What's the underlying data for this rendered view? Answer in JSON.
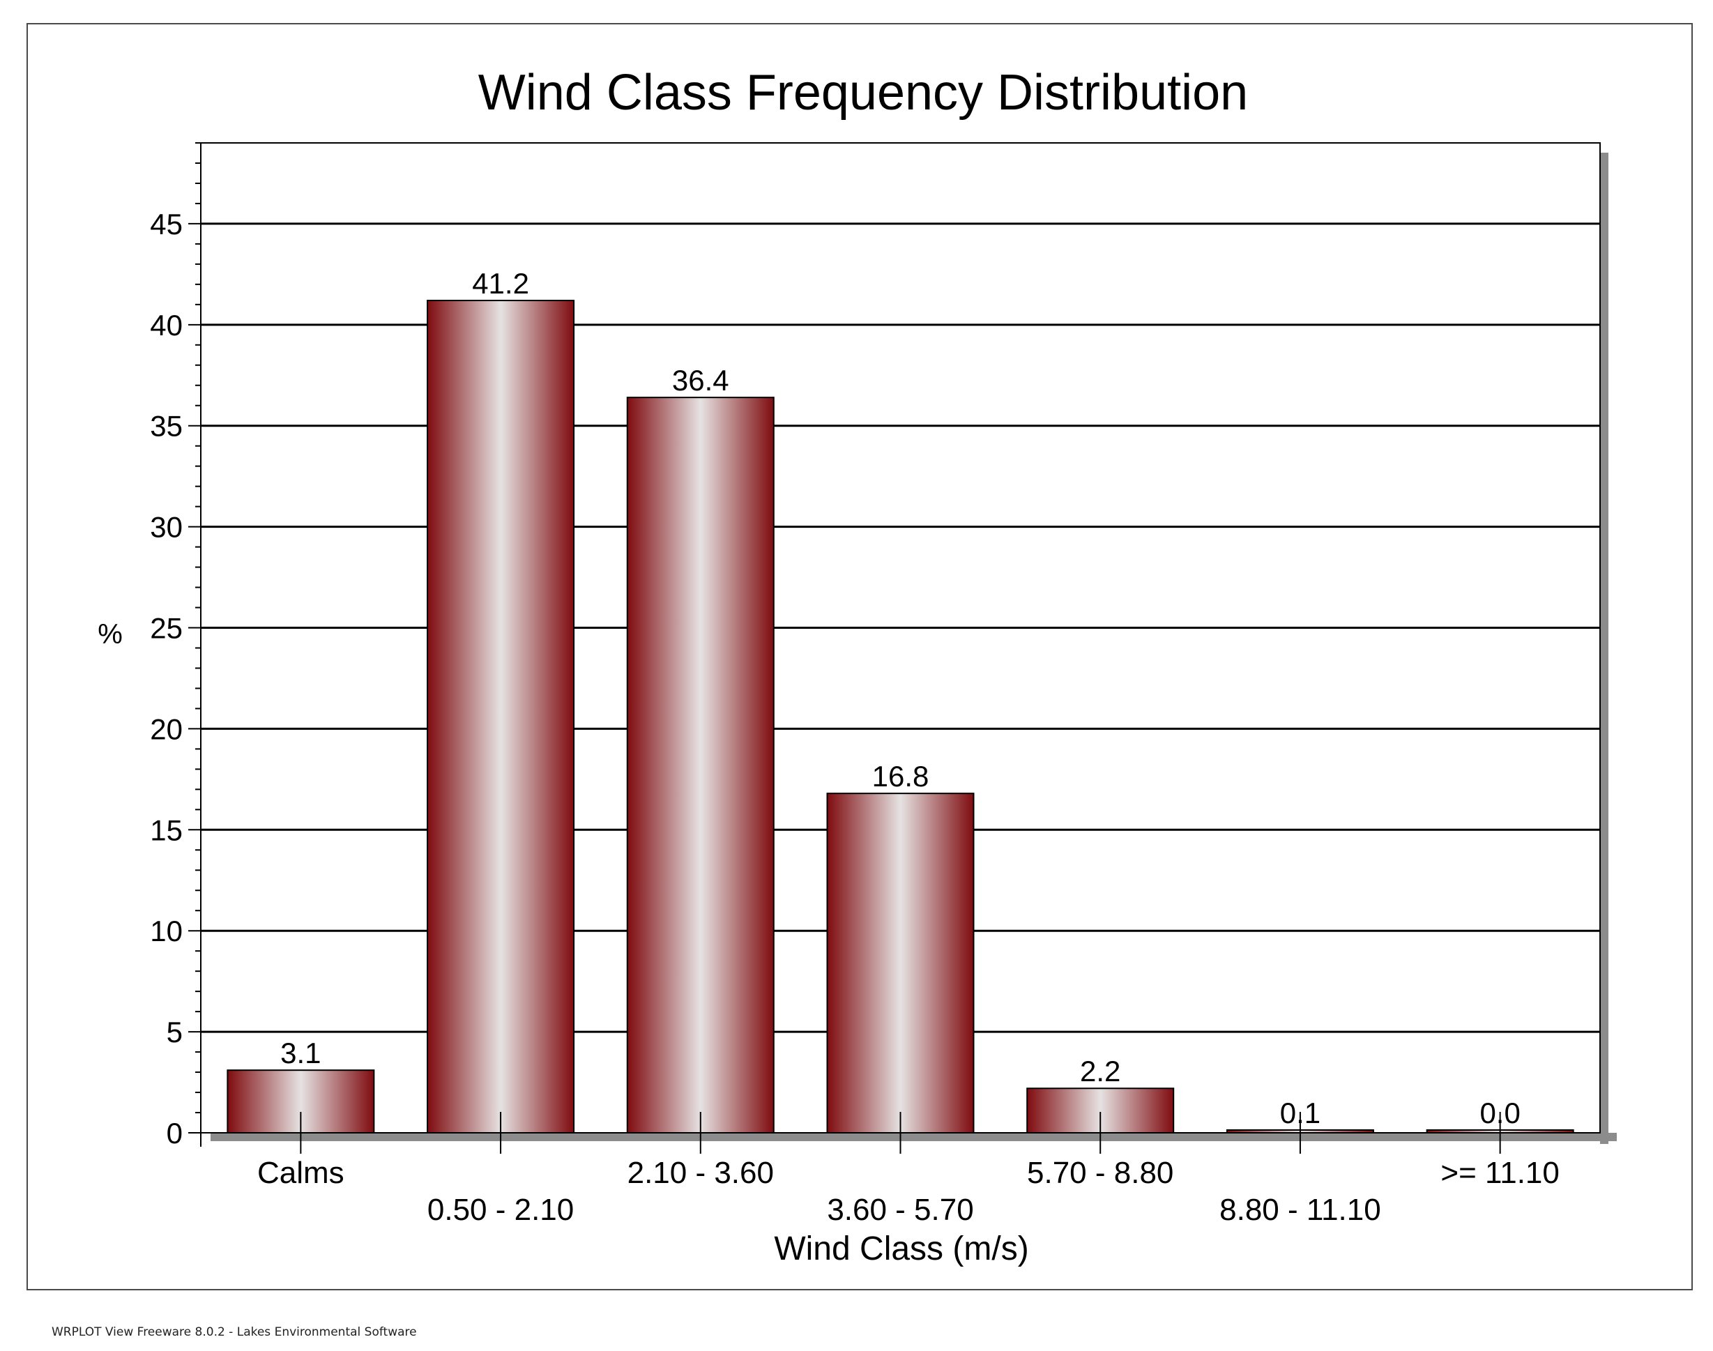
{
  "footer_text": "WRPLOT View Freeware 8.0.2 - Lakes Environmental Software",
  "chart_data": {
    "type": "bar",
    "title": "Wind Class Frequency Distribution",
    "xlabel": "Wind Class (m/s)",
    "ylabel": "%",
    "categories": [
      "Calms",
      "0.50 - 2.10",
      "2.10 - 3.60",
      "3.60 - 5.70",
      "5.70 - 8.80",
      "8.80 - 11.10",
      ">= 11.10"
    ],
    "values": [
      3.1,
      41.2,
      36.4,
      16.8,
      2.2,
      0.1,
      0.0
    ],
    "data_labels": [
      "3.1",
      "41.2",
      "36.4",
      "16.8",
      "2.2",
      "0.1",
      "0.0"
    ],
    "yticks": [
      "0",
      "5",
      "10",
      "15",
      "20",
      "25",
      "30",
      "35",
      "40",
      "45"
    ],
    "ylim": [
      0,
      49
    ],
    "grid": true,
    "legend": "none",
    "colors": {
      "bar_dark": "#7f0c10",
      "bar_light": "#e4e0e0",
      "grid": "#000000",
      "shadow": "#8c8c8c"
    }
  }
}
